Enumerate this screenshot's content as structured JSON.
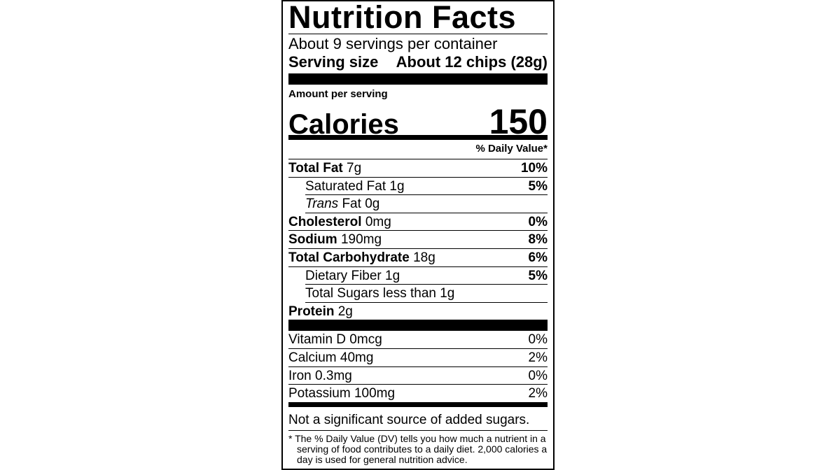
{
  "label": {
    "title": "Nutrition Facts",
    "servings": "About 9 servings per container",
    "serving_size": {
      "label": "Serving size",
      "value": "About 12 chips (28g)"
    },
    "amount_per_serving": "Amount per serving",
    "calories": {
      "label": "Calories",
      "value": "150"
    },
    "daily_value_header": "% Daily Value*",
    "nutrients": [
      {
        "name": "Total Fat",
        "amount": "7g",
        "dv": "10%",
        "sub": [
          {
            "name": "Saturated Fat",
            "amount": "1g",
            "dv": "5%"
          },
          {
            "name_italic": "Trans",
            "name": "Fat",
            "amount": "0g"
          }
        ]
      },
      {
        "name": "Cholesterol",
        "amount": "0mg",
        "dv": "0%"
      },
      {
        "name": "Sodium",
        "amount": "190mg",
        "dv": "8%"
      },
      {
        "name": "Total Carbohydrate",
        "amount": "18g",
        "dv": "6%",
        "sub": [
          {
            "name": "Dietary Fiber",
            "amount": "1g",
            "dv": "5%"
          },
          {
            "name": "Total Sugars",
            "amount": "less than 1g"
          }
        ]
      },
      {
        "name": "Protein",
        "amount": "2g"
      }
    ],
    "vitamins": [
      {
        "name": "Vitamin D",
        "amount": "0mcg",
        "dv": "0%"
      },
      {
        "name": "Calcium",
        "amount": "40mg",
        "dv": "2%"
      },
      {
        "name": "Iron",
        "amount": "0.3mg",
        "dv": "0%"
      },
      {
        "name": "Potassium",
        "amount": "100mg",
        "dv": "2%"
      }
    ],
    "added_sugars_note": "Not a significant source of added sugars.",
    "footnote": "* The % Daily Value (DV) tells you how much a nutrient in a serving of food contributes to a daily diet. 2,000 calories a day is used for general nutrition advice."
  }
}
